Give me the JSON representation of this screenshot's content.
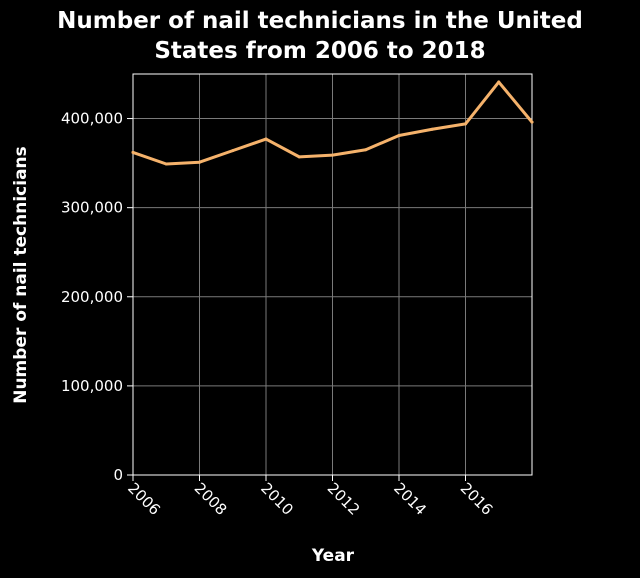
{
  "chart_data": {
    "type": "line",
    "title_lines": [
      "Number of nail technicians in the United",
      "States from 2006 to 2018"
    ],
    "xlabel": "Year",
    "ylabel": "Number of nail technicians",
    "x": [
      2006,
      2007,
      2008,
      2009,
      2010,
      2011,
      2012,
      2013,
      2014,
      2015,
      2016,
      2017,
      2018
    ],
    "series": [
      {
        "values": [
          362000,
          349000,
          351000,
          364000,
          377000,
          357000,
          359000,
          365000,
          381000,
          388000,
          394000,
          441000,
          396000
        ]
      }
    ],
    "xlim": [
      2006,
      2018
    ],
    "ylim": [
      0,
      450000
    ],
    "x_ticks": [
      2006,
      2008,
      2010,
      2012,
      2014,
      2016
    ],
    "x_tick_labels": [
      "2006",
      "2008",
      "2010",
      "2012",
      "2014",
      "2016"
    ],
    "y_ticks": [
      0,
      100000,
      200000,
      300000,
      400000
    ],
    "y_tick_labels": [
      "0",
      "100,000",
      "200,000",
      "300,000",
      "400,000"
    ],
    "grid": true,
    "line_color": "#f5b26b",
    "background_color": "#000000",
    "grid_color": "#7a7a7a",
    "text_color": "#ffffff"
  }
}
